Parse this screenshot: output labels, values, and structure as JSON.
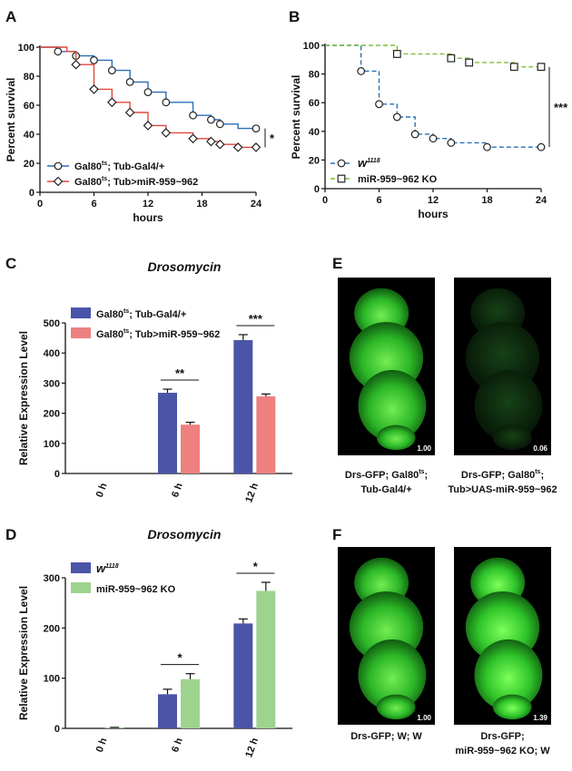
{
  "panels": {
    "A": "A",
    "B": "B",
    "C": "C",
    "D": "D",
    "E": "E",
    "F": "F"
  },
  "chart_data": [
    {
      "panel": "A",
      "type": "line",
      "subtype": "survival-step",
      "xlabel": "hours",
      "ylabel": "Percent survival",
      "xlim": [
        0,
        24
      ],
      "ylim": [
        0,
        100
      ],
      "xticks": [
        "0",
        "6",
        "12",
        "18",
        "24"
      ],
      "yticks": [
        "0",
        "20",
        "40",
        "60",
        "80",
        "100"
      ],
      "series": [
        {
          "name_main": "Gal80",
          "name_sup": "ts",
          "name_rest": "; Tub-Gal4/+",
          "color": "#2a6fb8",
          "dashed": false,
          "marker": "circle",
          "steps": [
            [
              0,
              100
            ],
            [
              2,
              97
            ],
            [
              4,
              94
            ],
            [
              6,
              91
            ],
            [
              8,
              84
            ],
            [
              10,
              76
            ],
            [
              12,
              69
            ],
            [
              14,
              62
            ],
            [
              17,
              53
            ],
            [
              19,
              50
            ],
            [
              20,
              47
            ],
            [
              22,
              44
            ],
            [
              24,
              44
            ]
          ],
          "markers": [
            [
              2,
              97
            ],
            [
              4,
              94
            ],
            [
              6,
              91
            ],
            [
              8,
              84
            ],
            [
              10,
              76
            ],
            [
              12,
              69
            ],
            [
              14,
              62
            ],
            [
              17,
              53
            ],
            [
              19,
              50
            ],
            [
              20,
              47
            ],
            [
              24,
              44
            ]
          ]
        },
        {
          "name_main": "Gal80",
          "name_sup": "ts",
          "name_rest": "; Tub>miR-959~962",
          "color": "#e0473c",
          "dashed": false,
          "marker": "diamond",
          "steps": [
            [
              0,
              100
            ],
            [
              3,
              97
            ],
            [
              4,
              88
            ],
            [
              6,
              71
            ],
            [
              8,
              62
            ],
            [
              10,
              55
            ],
            [
              12,
              46
            ],
            [
              14,
              41
            ],
            [
              17,
              37
            ],
            [
              19,
              35
            ],
            [
              20,
              33
            ],
            [
              22,
              31
            ],
            [
              24,
              31
            ]
          ],
          "markers": [
            [
              4,
              88
            ],
            [
              6,
              71
            ],
            [
              8,
              62
            ],
            [
              10,
              55
            ],
            [
              12,
              46
            ],
            [
              14,
              41
            ],
            [
              17,
              37
            ],
            [
              19,
              35
            ],
            [
              20,
              33
            ],
            [
              22,
              31
            ],
            [
              24,
              31
            ]
          ]
        }
      ],
      "significance": "*"
    },
    {
      "panel": "B",
      "type": "line",
      "subtype": "survival-step",
      "xlabel": "hours",
      "ylabel": "Percent survival",
      "xlim": [
        0,
        24
      ],
      "ylim": [
        0,
        100
      ],
      "xticks": [
        "0",
        "6",
        "12",
        "18",
        "24"
      ],
      "yticks": [
        "0",
        "20",
        "40",
        "60",
        "80",
        "100"
      ],
      "series": [
        {
          "name_main": "w",
          "name_sup": "1118",
          "name_rest": "",
          "color": "#2a6fb8",
          "dashed": true,
          "marker": "circle",
          "steps": [
            [
              0,
              100
            ],
            [
              4,
              82
            ],
            [
              6,
              59
            ],
            [
              8,
              50
            ],
            [
              10,
              38
            ],
            [
              12,
              35
            ],
            [
              14,
              32
            ],
            [
              18,
              29
            ],
            [
              24,
              29
            ]
          ],
          "markers": [
            [
              4,
              82
            ],
            [
              6,
              59
            ],
            [
              8,
              50
            ],
            [
              10,
              38
            ],
            [
              12,
              35
            ],
            [
              14,
              32
            ],
            [
              18,
              29
            ],
            [
              24,
              29
            ]
          ]
        },
        {
          "name_main": "miR-959~962 KO",
          "name_sup": "",
          "name_rest": "",
          "color": "#7dbf3b",
          "dashed": true,
          "marker": "square",
          "steps": [
            [
              0,
              100
            ],
            [
              8,
              94
            ],
            [
              14,
              91
            ],
            [
              16,
              88
            ],
            [
              21,
              85
            ],
            [
              24,
              85
            ]
          ],
          "markers": [
            [
              8,
              94
            ],
            [
              14,
              91
            ],
            [
              16,
              88
            ],
            [
              21,
              85
            ],
            [
              24,
              85
            ]
          ]
        }
      ],
      "significance": "***"
    },
    {
      "panel": "C",
      "type": "bar",
      "title": "Drosomycin",
      "ylabel": "Relative Expression Level",
      "ylim": [
        0,
        500
      ],
      "yticks": [
        "0",
        "100",
        "200",
        "300",
        "400",
        "500"
      ],
      "categories": [
        "0 h",
        "6 h",
        "12 h"
      ],
      "series": [
        {
          "name_main": "Gal80",
          "name_sup": "ts",
          "name_rest": "; Tub-Gal4/+",
          "color": "#4a55a8",
          "values": [
            0,
            268,
            443
          ],
          "errors": [
            0,
            12,
            18
          ]
        },
        {
          "name_main": "Gal80",
          "name_sup": "ts",
          "name_rest": "; Tub>miR-959~962",
          "color": "#ee8080",
          "values": [
            0,
            162,
            256
          ],
          "errors": [
            0,
            8,
            8
          ]
        }
      ],
      "significance": [
        {
          "category": "6 h",
          "label": "**"
        },
        {
          "category": "12 h",
          "label": "***"
        }
      ]
    },
    {
      "panel": "D",
      "type": "bar",
      "title": "Drosomycin",
      "ylabel": "Relative Expression Level",
      "ylim": [
        0,
        300
      ],
      "yticks": [
        "0",
        "100",
        "200",
        "300"
      ],
      "categories": [
        "0 h",
        "6 h",
        "12 h"
      ],
      "series": [
        {
          "name_main": "w",
          "name_sup": "1118",
          "name_rest": "",
          "color": "#4a55a8",
          "values": [
            0,
            68,
            209
          ],
          "errors": [
            0,
            10,
            9
          ]
        },
        {
          "name_main": "miR-959~962 KO",
          "name_sup": "",
          "name_rest": "",
          "color": "#9ed38f",
          "values": [
            1.5,
            98,
            274
          ],
          "errors": [
            0.5,
            11,
            17
          ]
        }
      ],
      "significance": [
        {
          "category": "6 h",
          "label": "*"
        },
        {
          "category": "12 h",
          "label": "*"
        }
      ]
    }
  ],
  "images": {
    "E": [
      {
        "value": "1.00",
        "caption_line1_main": "Drs-GFP; Gal80",
        "caption_line1_sup": "ts",
        "caption_line1_rest": ";",
        "caption_line2": "Tub-Gal4/+",
        "brightness": 1.0
      },
      {
        "value": "0.06",
        "caption_line1_main": "Drs-GFP; Gal80",
        "caption_line1_sup": "ts",
        "caption_line1_rest": ";",
        "caption_line2": "Tub>UAS-miR-959~962",
        "brightness": 0.06
      }
    ],
    "F": [
      {
        "value": "1.00",
        "caption_line1_main": "Drs-GFP; W; W",
        "caption_line1_sup": "",
        "caption_line1_rest": "",
        "caption_line2": "",
        "brightness": 1.0
      },
      {
        "value": "1.39",
        "caption_line1_main": "Drs-GFP;",
        "caption_line1_sup": "",
        "caption_line1_rest": "",
        "caption_line2": "miR-959~962 KO; W",
        "brightness": 1.39
      }
    ]
  }
}
